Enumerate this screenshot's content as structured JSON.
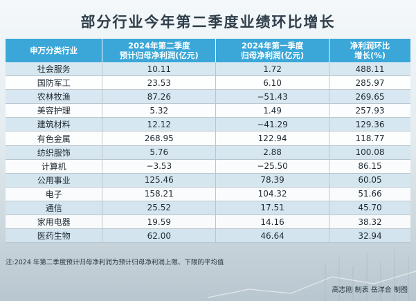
{
  "title": "部分行业今年第二季度业绩环比增长",
  "chart_data": {
    "type": "table",
    "columns": [
      {
        "line1": "申万分类行业",
        "line2": ""
      },
      {
        "line1": "2024年第二季度",
        "line2": "预计归母净利润(亿元)"
      },
      {
        "line1": "2024年第一季度",
        "line2": "归母净利润(亿元)"
      },
      {
        "line1": "净利润环比",
        "line2": "增长(%)"
      }
    ],
    "rows": [
      [
        "社会服务",
        "10.11",
        "1.72",
        "488.11"
      ],
      [
        "国防军工",
        "23.53",
        "6.10",
        "285.97"
      ],
      [
        "农林牧渔",
        "87.26",
        "−51.43",
        "269.65"
      ],
      [
        "美容护理",
        "5.32",
        "1.49",
        "257.93"
      ],
      [
        "建筑材料",
        "12.12",
        "−41.29",
        "129.36"
      ],
      [
        "有色金属",
        "268.95",
        "122.94",
        "118.77"
      ],
      [
        "纺织服饰",
        "5.76",
        "2.88",
        "100.08"
      ],
      [
        "计算机",
        "−3.53",
        "−25.50",
        "86.15"
      ],
      [
        "公用事业",
        "125.46",
        "78.39",
        "60.05"
      ],
      [
        "电子",
        "158.21",
        "104.32",
        "51.66"
      ],
      [
        "通信",
        "25.52",
        "17.51",
        "45.70"
      ],
      [
        "家用电器",
        "19.59",
        "14.16",
        "38.32"
      ],
      [
        "医药生物",
        "62.00",
        "46.64",
        "32.94"
      ]
    ]
  },
  "note": "注:2024 年第二季度预计归母净利润为预计归母净利润上限、下限的平均值",
  "credit": "高志刚  制表    岳洋合  制图",
  "colors": {
    "header_bg": "#3aa7d8",
    "row_tint": "#cde2ee",
    "title_text": "#2f3e4a"
  }
}
